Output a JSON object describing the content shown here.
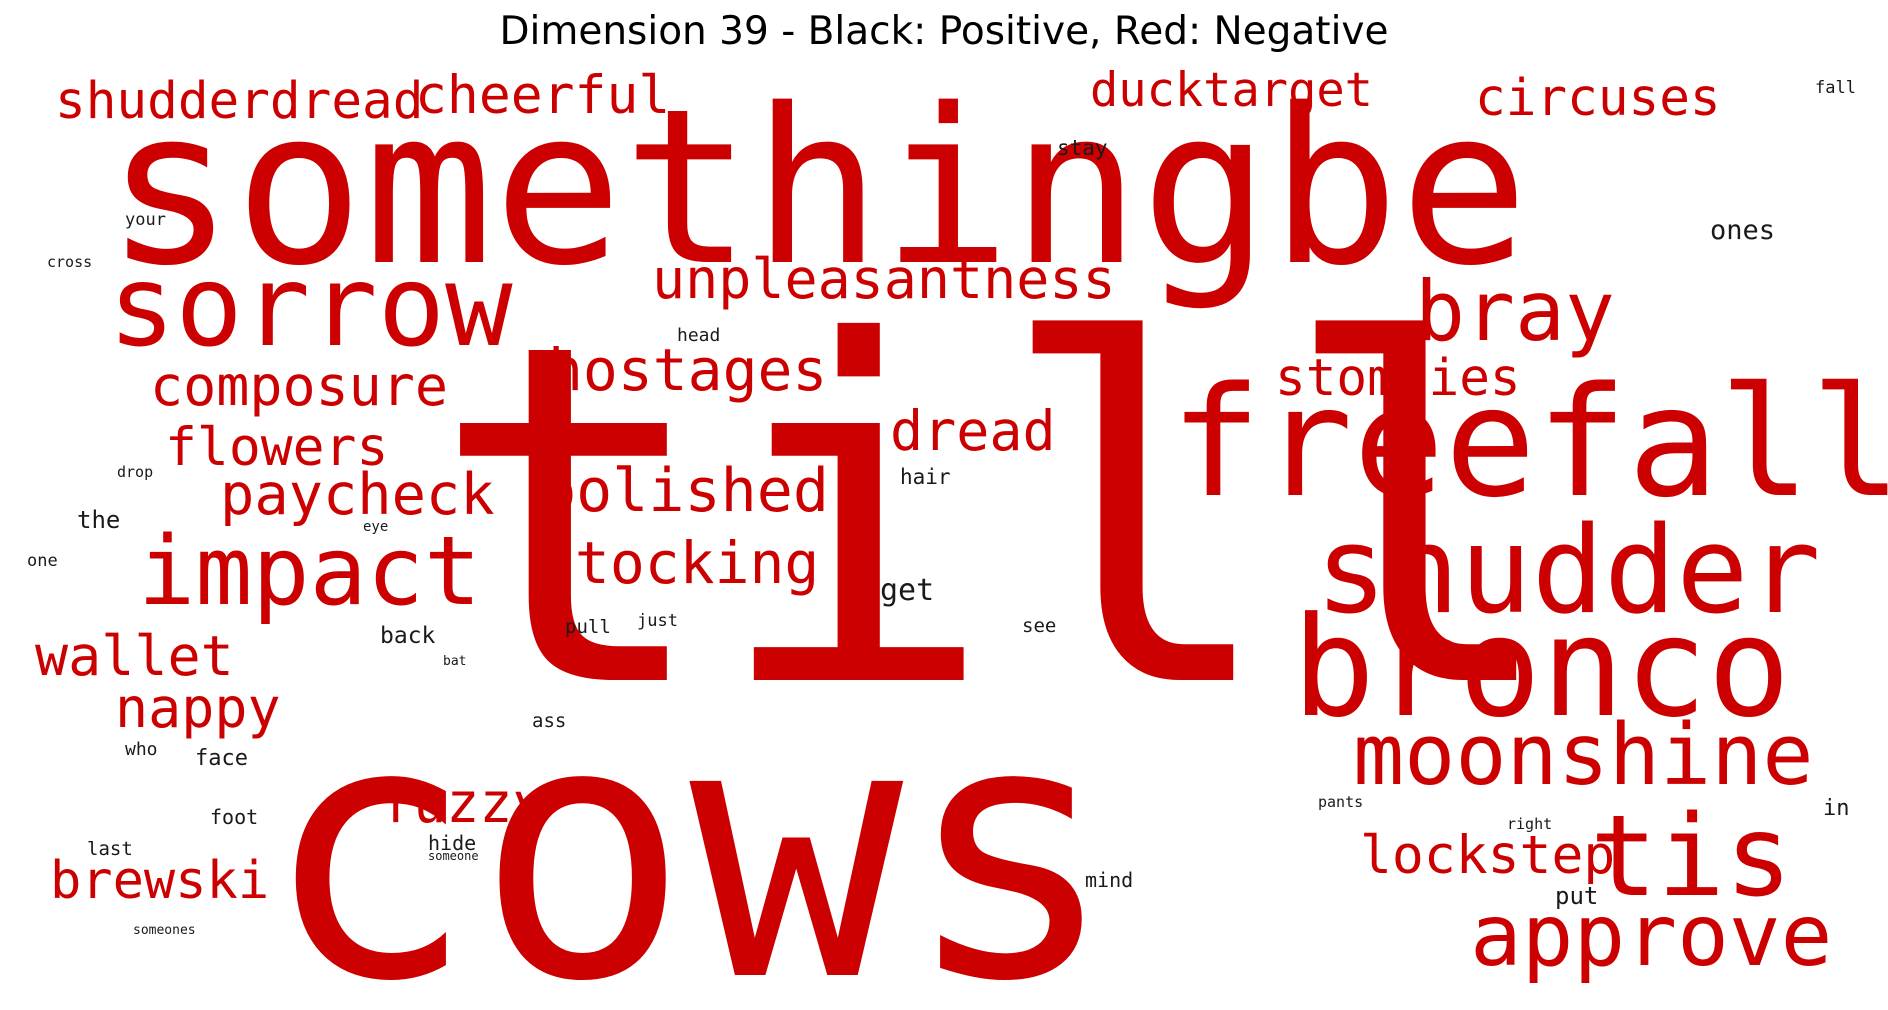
{
  "title": "Dimension 39 - Black: Positive, Red: Negative",
  "colors": {
    "negative": "#cc0000",
    "positive": "#1a1a1a"
  },
  "words": [
    {
      "text": "somethingbe",
      "polarity": "negative"
    },
    {
      "text": "till",
      "polarity": "negative"
    },
    {
      "text": "cows",
      "polarity": "negative"
    },
    {
      "text": "sorrow",
      "polarity": "negative"
    },
    {
      "text": "freefall",
      "polarity": "negative"
    },
    {
      "text": "shudder",
      "polarity": "negative"
    },
    {
      "text": "bronco",
      "polarity": "negative"
    },
    {
      "text": "bray",
      "polarity": "negative"
    },
    {
      "text": "impact",
      "polarity": "negative"
    },
    {
      "text": "moonshine",
      "polarity": "negative"
    },
    {
      "text": "tis",
      "polarity": "negative"
    },
    {
      "text": "approve",
      "polarity": "negative"
    },
    {
      "text": "shudderdread",
      "polarity": "negative"
    },
    {
      "text": "cheerful",
      "polarity": "negative"
    },
    {
      "text": "ducktarget",
      "polarity": "negative"
    },
    {
      "text": "circuses",
      "polarity": "negative"
    },
    {
      "text": "unpleasantness",
      "polarity": "negative"
    },
    {
      "text": "composure",
      "polarity": "negative"
    },
    {
      "text": "hostages",
      "polarity": "negative"
    },
    {
      "text": "stompies",
      "polarity": "negative"
    },
    {
      "text": "flowers",
      "polarity": "negative"
    },
    {
      "text": "dread",
      "polarity": "negative"
    },
    {
      "text": "paycheck",
      "polarity": "negative"
    },
    {
      "text": "polished",
      "polarity": "negative"
    },
    {
      "text": "stocking",
      "polarity": "negative"
    },
    {
      "text": "wallet",
      "polarity": "negative"
    },
    {
      "text": "nappy",
      "polarity": "negative"
    },
    {
      "text": "fuzzy",
      "polarity": "negative"
    },
    {
      "text": "brewski",
      "polarity": "negative"
    },
    {
      "text": "lockstep",
      "polarity": "negative"
    },
    {
      "text": "fall",
      "polarity": "positive"
    },
    {
      "text": "stay",
      "polarity": "positive"
    },
    {
      "text": "your",
      "polarity": "positive"
    },
    {
      "text": "cross",
      "polarity": "positive"
    },
    {
      "text": "ones",
      "polarity": "positive"
    },
    {
      "text": "head",
      "polarity": "positive"
    },
    {
      "text": "drop",
      "polarity": "positive"
    },
    {
      "text": "hair",
      "polarity": "positive"
    },
    {
      "text": "the",
      "polarity": "positive"
    },
    {
      "text": "eye",
      "polarity": "positive"
    },
    {
      "text": "one",
      "polarity": "positive"
    },
    {
      "text": "get",
      "polarity": "positive"
    },
    {
      "text": "just",
      "polarity": "positive"
    },
    {
      "text": "back",
      "polarity": "positive"
    },
    {
      "text": "pull",
      "polarity": "positive"
    },
    {
      "text": "see",
      "polarity": "positive"
    },
    {
      "text": "bat",
      "polarity": "positive"
    },
    {
      "text": "ass",
      "polarity": "positive"
    },
    {
      "text": "who",
      "polarity": "positive"
    },
    {
      "text": "face",
      "polarity": "positive"
    },
    {
      "text": "foot",
      "polarity": "positive"
    },
    {
      "text": "pants",
      "polarity": "positive"
    },
    {
      "text": "in",
      "polarity": "positive"
    },
    {
      "text": "right",
      "polarity": "positive"
    },
    {
      "text": "last",
      "polarity": "positive"
    },
    {
      "text": "hide",
      "polarity": "positive"
    },
    {
      "text": "someone",
      "polarity": "positive"
    },
    {
      "text": "mind",
      "polarity": "positive"
    },
    {
      "text": "put",
      "polarity": "positive"
    },
    {
      "text": "someones",
      "polarity": "positive"
    }
  ]
}
